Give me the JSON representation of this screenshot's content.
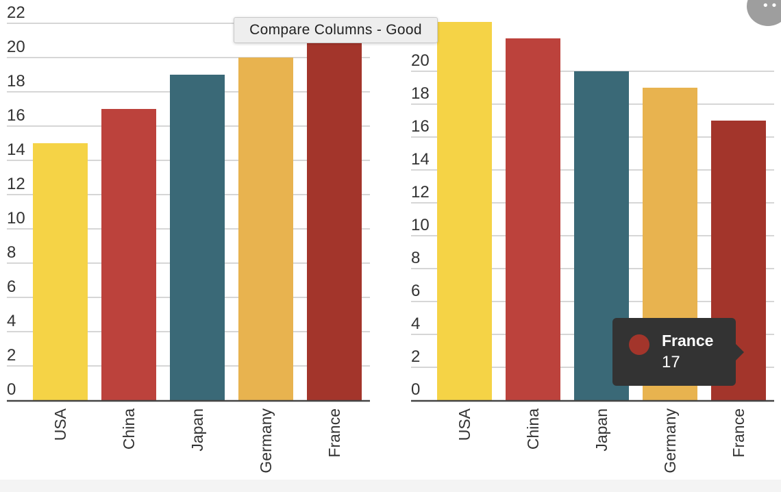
{
  "tooltip_button": {
    "label": "Compare Columns - Good"
  },
  "hover_tooltip": {
    "name": "France",
    "value": "17",
    "color": "#A3352B"
  },
  "palette": {
    "USA": "#F5D346",
    "China": "#BC423C",
    "Japan": "#3A6977",
    "Germany": "#E8B34F",
    "France": "#A3352B"
  },
  "chart_data": [
    {
      "type": "bar",
      "categories": [
        "USA",
        "China",
        "Japan",
        "Germany",
        "France"
      ],
      "values": [
        15,
        17,
        19,
        20,
        21
      ],
      "yticks": [
        0,
        2,
        4,
        6,
        8,
        10,
        12,
        14,
        16,
        18,
        20,
        22
      ],
      "ylim": [
        0,
        22
      ],
      "grid": true,
      "title": "",
      "xlabel": "",
      "ylabel": ""
    },
    {
      "type": "bar",
      "categories": [
        "USA",
        "China",
        "Japan",
        "Germany",
        "France"
      ],
      "values": [
        23,
        22,
        20,
        19,
        17
      ],
      "yticks": [
        0,
        2,
        4,
        6,
        8,
        10,
        12,
        14,
        16,
        18,
        20
      ],
      "ylim": [
        0,
        22
      ],
      "grid": true,
      "title": "",
      "xlabel": "",
      "ylabel": ""
    }
  ]
}
